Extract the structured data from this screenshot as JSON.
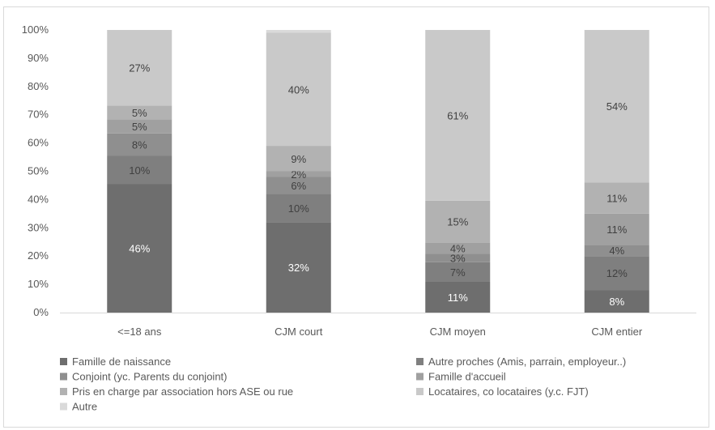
{
  "chart_data": {
    "type": "bar",
    "stacked": true,
    "normalized_percent": true,
    "title": "",
    "xlabel": "",
    "ylabel": "",
    "ylim": [
      0,
      100
    ],
    "yticks": [
      "0%",
      "10%",
      "20%",
      "30%",
      "40%",
      "50%",
      "60%",
      "70%",
      "80%",
      "90%",
      "100%"
    ],
    "grid": false,
    "legend_position": "bottom",
    "categories": [
      "<=18 ans",
      "CJM court",
      "CJM moyen",
      "CJM entier"
    ],
    "series": [
      {
        "name": "Famille de naissance",
        "color": "#6e6e6e",
        "label_color": "#ffffff",
        "values": [
          46,
          32,
          11,
          8
        ],
        "labels": [
          "46%",
          "32%",
          "11%",
          "8%"
        ]
      },
      {
        "name": "Autre proches (Amis, parrain, employeur..)",
        "color": "#7f7f7f",
        "label_color": "#404040",
        "values": [
          10,
          10,
          7,
          12
        ],
        "labels": [
          "10%",
          "10%",
          "7%",
          "12%"
        ]
      },
      {
        "name": "Conjoint (yc. Parents du conjoint)",
        "color": "#8f8f8f",
        "label_color": "#404040",
        "values": [
          8,
          6,
          3,
          4
        ],
        "labels": [
          "8%",
          "6%",
          "3%",
          "4%"
        ]
      },
      {
        "name": "Famille d'accueil",
        "color": "#a0a0a0",
        "label_color": "#404040",
        "values": [
          5,
          2,
          4,
          11
        ],
        "labels": [
          "5%",
          "2%",
          "4%",
          "11%"
        ]
      },
      {
        "name": "Pris en charge par association hors ASE ou rue",
        "color": "#b2b2b2",
        "label_color": "#404040",
        "values": [
          5,
          9,
          15,
          11
        ],
        "labels": [
          "5%",
          "9%",
          "15%",
          "11%"
        ]
      },
      {
        "name": "Locataires, co locataires (y.c. FJT)",
        "color": "#c9c9c9",
        "label_color": "#404040",
        "values": [
          27,
          40,
          61,
          54
        ],
        "labels": [
          "27%",
          "40%",
          "61%",
          "54%"
        ]
      },
      {
        "name": "Autre",
        "color": "#dadada",
        "label_color": "#404040",
        "values": [
          0,
          1,
          0,
          0
        ],
        "labels": [
          "",
          "",
          "",
          ""
        ]
      }
    ],
    "colors": {
      "axis": "#d9d9d9",
      "text": "#595959"
    }
  }
}
